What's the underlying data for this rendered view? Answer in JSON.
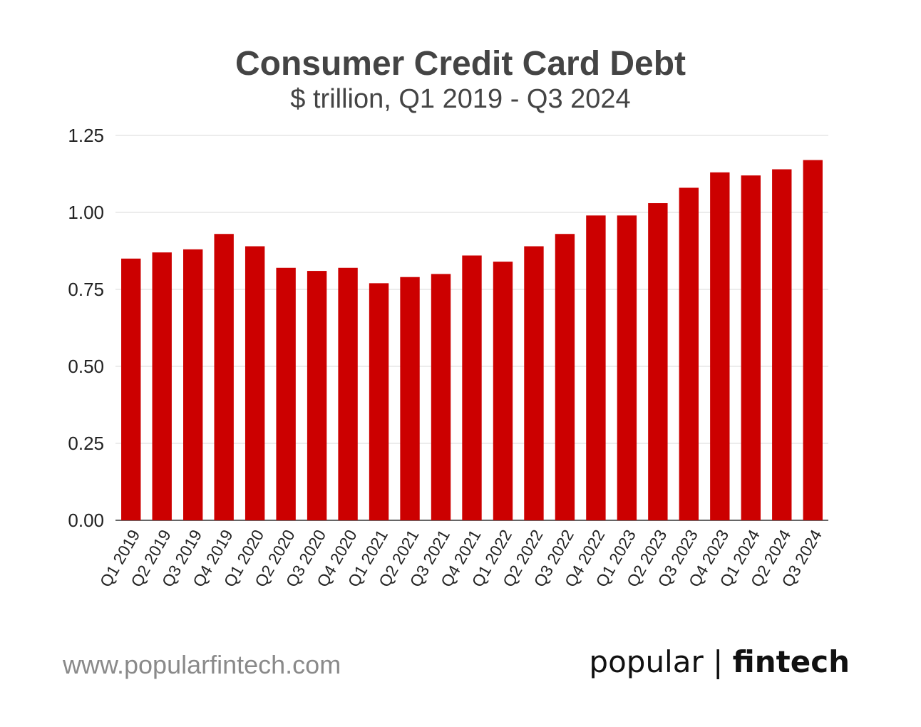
{
  "chart_data": {
    "type": "bar",
    "title": "Consumer Credit Card Debt",
    "subtitle": "$ trillion, Q1 2019 - Q3 2024",
    "xlabel": "",
    "ylabel": "",
    "ylim": [
      0,
      1.25
    ],
    "yticks": [
      "0.00",
      "0.25",
      "0.50",
      "0.75",
      "1.00",
      "1.25"
    ],
    "grid": true,
    "bar_color": "#cc0000",
    "categories": [
      "Q1 2019",
      "Q2 2019",
      "Q3 2019",
      "Q4 2019",
      "Q1 2020",
      "Q2 2020",
      "Q3 2020",
      "Q4 2020",
      "Q1 2021",
      "Q2 2021",
      "Q3 2021",
      "Q4 2021",
      "Q1 2022",
      "Q2 2022",
      "Q3 2022",
      "Q4 2022",
      "Q1 2023",
      "Q2 2023",
      "Q3 2023",
      "Q4 2023",
      "Q1 2024",
      "Q2 2024",
      "Q3 2024"
    ],
    "values": [
      0.85,
      0.87,
      0.88,
      0.93,
      0.89,
      0.82,
      0.81,
      0.82,
      0.77,
      0.79,
      0.8,
      0.86,
      0.84,
      0.89,
      0.93,
      0.99,
      0.99,
      1.03,
      1.08,
      1.13,
      1.12,
      1.14,
      1.17
    ]
  },
  "footer": {
    "url": "www.popularfintech.com",
    "brand_part1": "popular",
    "brand_separator": "|",
    "brand_part2": "fintech"
  }
}
